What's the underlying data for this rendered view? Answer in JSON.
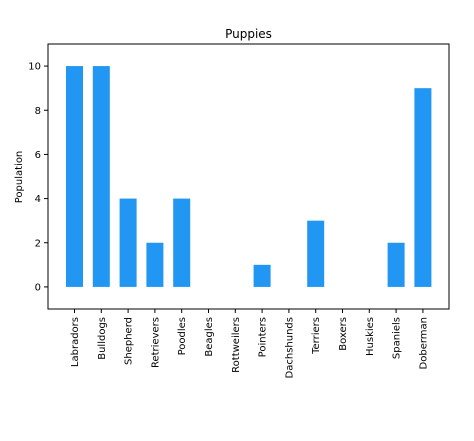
{
  "chart_data": {
    "type": "bar",
    "title": "Puppies",
    "xlabel": "",
    "ylabel": "Population",
    "categories": [
      "Labradors",
      "Bulldogs",
      "Shepherd",
      "Retrievers",
      "Poodles",
      "Beagles",
      "Rottweilers",
      "Pointers",
      "Dachshunds",
      "Terriers",
      "Boxers",
      "Huskies",
      "Spaniels",
      "Doberman"
    ],
    "values": [
      10,
      10,
      4,
      2,
      4,
      0,
      0,
      1,
      0,
      3,
      0,
      0,
      2,
      9
    ],
    "ylim": [
      -1,
      11
    ],
    "yticks": [
      0,
      2,
      4,
      6,
      8,
      10
    ],
    "grid": false,
    "bar_color": "#2196F3"
  }
}
